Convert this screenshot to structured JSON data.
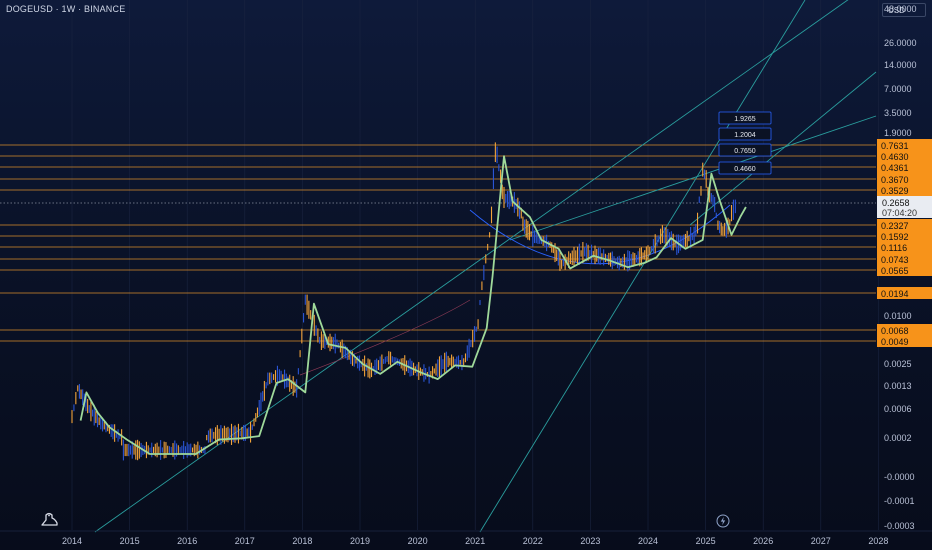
{
  "header": {
    "title": "DOGEUSD · 1W · BINANCE",
    "currency": "USD"
  },
  "colors": {
    "background": "#0b1224",
    "grid": "#1a2440",
    "axis_text": "#b9c1d6",
    "orange": "#f7931a",
    "hline": "#d98c2b",
    "teal": "#2a9d9d",
    "blue": "#2962ff",
    "green": "#9fd99a",
    "candle_up": "#f2a33a",
    "candle_down": "#2a55d6"
  },
  "icons": {
    "logo": "tradingview-logo-icon",
    "bolt": "lightning-icon"
  },
  "chart_data": {
    "type": "candlestick",
    "title": "DOGEUSD · 1W · BINANCE",
    "scale": "log",
    "ylim": [
      -0.0003,
      48.0
    ],
    "x_ticks": [
      "2014",
      "2015",
      "2016",
      "2017",
      "2018",
      "2019",
      "2020",
      "2021",
      "2022",
      "2023",
      "2024",
      "2025",
      "2026",
      "2027",
      "2028"
    ],
    "y_ticks": [
      "48.0000",
      "26.0000",
      "14.0000",
      "7.0000",
      "3.5000",
      "1.9000",
      "0.0100",
      "0.0025",
      "0.0013",
      "0.0006",
      "0.0002",
      "-0.0000",
      "-0.0001",
      "-0.0003"
    ],
    "horizontal_levels": [
      "0.7631",
      "0.4630",
      "0.4361",
      "0.3670",
      "0.3529",
      "0.2327",
      "0.1592",
      "0.1116",
      "0.0743",
      "0.0565",
      "0.0194",
      "0.0068",
      "0.0049"
    ],
    "current_price": {
      "value": "0.2658",
      "countdown": "07:04:20"
    },
    "target_boxes": [
      "1.9265",
      "1.2004",
      "0.7650",
      "0.4660"
    ],
    "price_path": [
      {
        "x": 2014.0,
        "y": 0.00045
      },
      {
        "x": 2014.1,
        "y": 0.0012
      },
      {
        "x": 2014.3,
        "y": 0.0006
      },
      {
        "x": 2014.5,
        "y": 0.00035
      },
      {
        "x": 2014.8,
        "y": 0.00022
      },
      {
        "x": 2015.2,
        "y": 0.00014
      },
      {
        "x": 2015.6,
        "y": 0.00013
      },
      {
        "x": 2016.0,
        "y": 0.00013
      },
      {
        "x": 2016.4,
        "y": 0.00022
      },
      {
        "x": 2016.8,
        "y": 0.00023
      },
      {
        "x": 2017.1,
        "y": 0.00025
      },
      {
        "x": 2017.4,
        "y": 0.0016
      },
      {
        "x": 2017.6,
        "y": 0.0018
      },
      {
        "x": 2017.9,
        "y": 0.0012
      },
      {
        "x": 2018.05,
        "y": 0.016
      },
      {
        "x": 2018.3,
        "y": 0.005
      },
      {
        "x": 2018.6,
        "y": 0.0045
      },
      {
        "x": 2018.9,
        "y": 0.0028
      },
      {
        "x": 2019.2,
        "y": 0.0021
      },
      {
        "x": 2019.5,
        "y": 0.003
      },
      {
        "x": 2019.9,
        "y": 0.0022
      },
      {
        "x": 2020.2,
        "y": 0.0018
      },
      {
        "x": 2020.5,
        "y": 0.0027
      },
      {
        "x": 2020.8,
        "y": 0.0026
      },
      {
        "x": 2021.05,
        "y": 0.008
      },
      {
        "x": 2021.15,
        "y": 0.05
      },
      {
        "x": 2021.35,
        "y": 0.55
      },
      {
        "x": 2021.5,
        "y": 0.3
      },
      {
        "x": 2021.8,
        "y": 0.25
      },
      {
        "x": 2022.0,
        "y": 0.16
      },
      {
        "x": 2022.3,
        "y": 0.12
      },
      {
        "x": 2022.5,
        "y": 0.065
      },
      {
        "x": 2022.9,
        "y": 0.095
      },
      {
        "x": 2023.2,
        "y": 0.08
      },
      {
        "x": 2023.5,
        "y": 0.067
      },
      {
        "x": 2023.8,
        "y": 0.075
      },
      {
        "x": 2024.0,
        "y": 0.09
      },
      {
        "x": 2024.25,
        "y": 0.17
      },
      {
        "x": 2024.5,
        "y": 0.12
      },
      {
        "x": 2024.8,
        "y": 0.16
      },
      {
        "x": 2024.95,
        "y": 0.42
      },
      {
        "x": 2025.1,
        "y": 0.3
      },
      {
        "x": 2025.3,
        "y": 0.19
      },
      {
        "x": 2025.45,
        "y": 0.25
      },
      {
        "x": 2025.55,
        "y": 0.2658
      }
    ]
  }
}
